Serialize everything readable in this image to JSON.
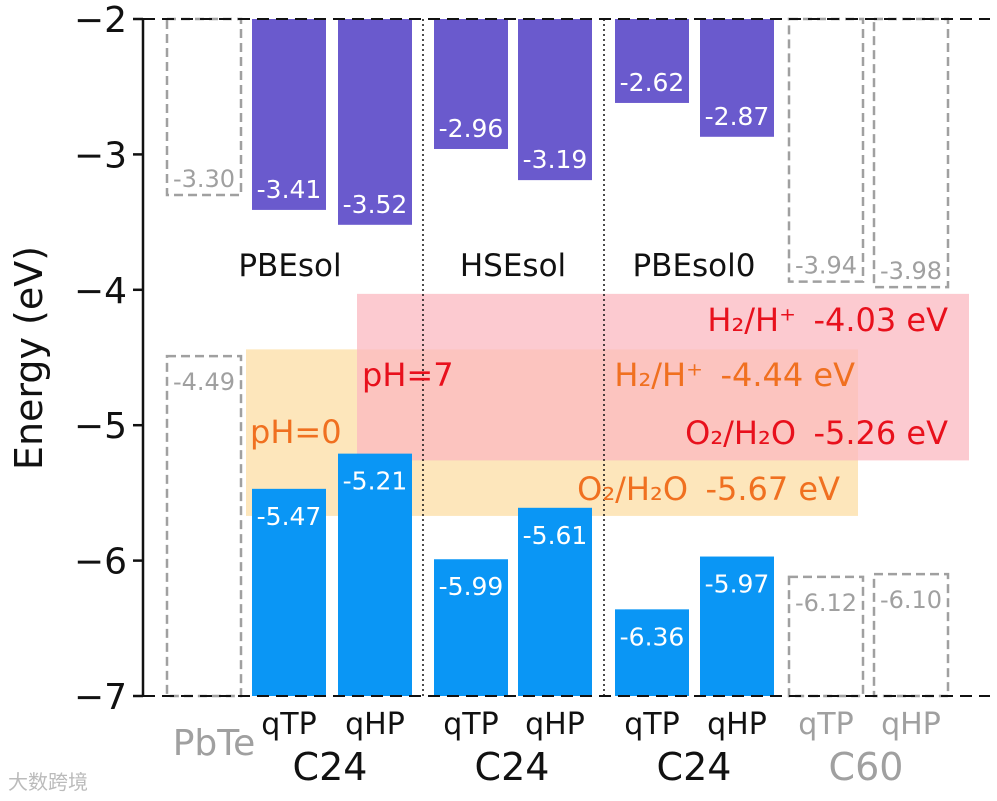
{
  "chart_data": {
    "type": "bar",
    "ylabel": "Energy (eV)",
    "ylim": [
      -7,
      -2
    ],
    "yticks": [
      -2,
      -3,
      -4,
      -5,
      -6,
      -7
    ],
    "ytick_labels": [
      "−2",
      "−3",
      "−4",
      "−5",
      "−6",
      "−7"
    ],
    "references": [
      {
        "name": "PbTe",
        "cbm": -3.3,
        "vbm": -4.49,
        "cbm_label": "-3.30",
        "vbm_label": "-4.49",
        "tick": "PbTe",
        "group": ""
      },
      {
        "name": "C60 qTP",
        "cbm": -3.94,
        "vbm": -6.12,
        "cbm_label": "-3.94",
        "vbm_label": "-6.12",
        "tick": "qTP",
        "group": "C60"
      },
      {
        "name": "C60 qHP",
        "cbm": -3.98,
        "vbm": -6.1,
        "cbm_label": "-3.98",
        "vbm_label": "-6.10",
        "tick": "qHP",
        "group": "C60"
      }
    ],
    "series": [
      {
        "name": "Conduction band minimum",
        "color": "#6a5acd",
        "values": [
          -3.41,
          -3.52,
          -2.96,
          -3.19,
          -2.62,
          -2.87
        ],
        "labels": [
          "-3.41",
          "-3.52",
          "-2.96",
          "-3.19",
          "-2.62",
          "-2.87"
        ]
      },
      {
        "name": "Valence band maximum",
        "color": "#0a96f5",
        "values": [
          -5.47,
          -5.21,
          -5.99,
          -5.61,
          -6.36,
          -5.97
        ],
        "labels": [
          "-5.47",
          "-5.21",
          "-5.99",
          "-5.61",
          "-6.36",
          "-5.97"
        ]
      }
    ],
    "categories": [
      "qTP",
      "qHP",
      "qTP",
      "qHP",
      "qTP",
      "qHP"
    ],
    "methods": [
      "PBEsol",
      "HSEsol",
      "PBEsol0"
    ],
    "group_labels": [
      "C24",
      "C24",
      "C24"
    ],
    "redox": {
      "ph0": {
        "label": "pH=0",
        "h2_label": "H₂/H⁺",
        "h2_value": -4.44,
        "h2_text": "-4.44 eV",
        "o2_label": "O₂/H₂O",
        "o2_value": -5.67,
        "o2_text": "-5.67 eV",
        "color": "#f07020",
        "fill": "#fde3b4"
      },
      "ph7": {
        "label": "pH=7",
        "h2_label": "H₂/H⁺",
        "h2_value": -4.03,
        "h2_text": "-4.03 eV",
        "o2_label": "O₂/H₂O",
        "o2_value": -5.26,
        "o2_text": "-5.26 eV",
        "color": "#e8101c",
        "fill": "#fbb8c0"
      }
    }
  },
  "watermark": "大数跨境"
}
